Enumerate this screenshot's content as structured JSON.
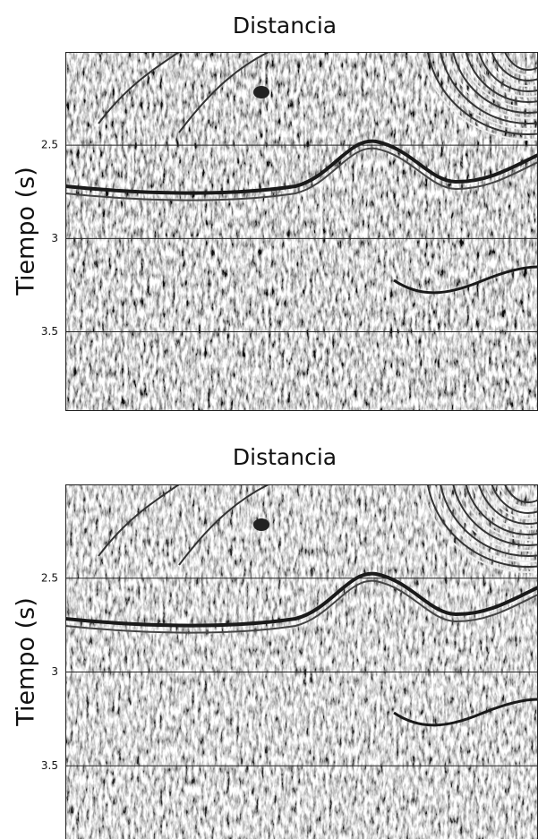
{
  "chart_data": [
    {
      "type": "image",
      "title": "Distancia",
      "ylabel": "Tiempo (s)",
      "ylim": [
        2.0,
        3.92
      ],
      "yticks": [
        2.5,
        3,
        3.5
      ],
      "grid": true
    },
    {
      "type": "image",
      "title": "Distancia",
      "ylabel": "Tiempo (s)",
      "ylim": [
        2.0,
        3.89
      ],
      "yticks": [
        2.5,
        3,
        3.5
      ],
      "grid": true
    }
  ]
}
